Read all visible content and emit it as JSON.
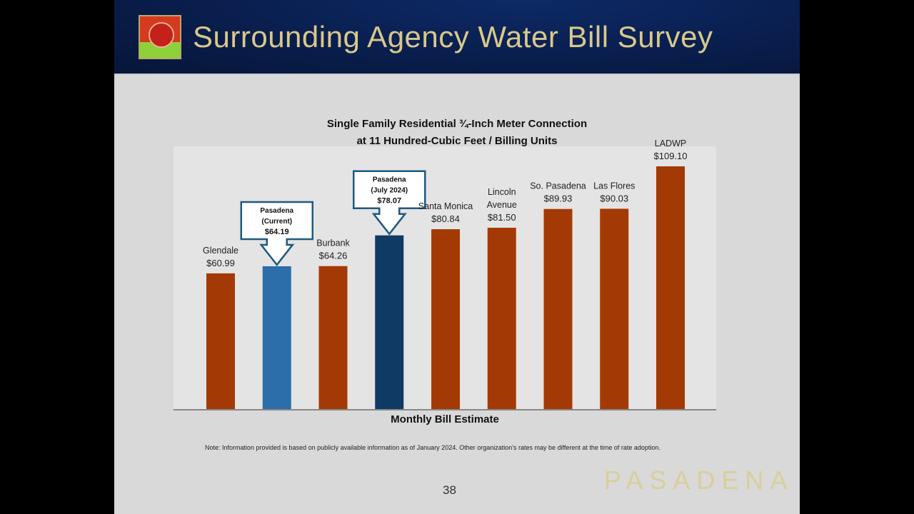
{
  "header": {
    "title": "Surrounding Agency Water Bill Survey",
    "logo": "pasadena-rose-logo"
  },
  "chart_data": {
    "type": "bar",
    "title": "Single Family Residential ¾-Inch Meter Connection",
    "subtitle": "at 11 Hundred-Cubic Feet / Billing Units",
    "xlabel": "Monthly Bill Estimate",
    "ylabel": "",
    "ylim": [
      0,
      118
    ],
    "grid": false,
    "categories": [
      "Glendale",
      "Pasadena (Current)",
      "Burbank",
      "Pasadena (July 2024)",
      "Santa Monica",
      "Lincoln Avenue",
      "So. Pasadena",
      "Las Flores",
      "LADWP"
    ],
    "values": [
      60.99,
      64.19,
      64.26,
      78.07,
      80.84,
      81.5,
      89.93,
      90.03,
      109.1
    ],
    "data_labels": [
      "$60.99",
      "$64.19",
      "$64.26",
      "$78.07",
      "$80.84",
      "$81.50",
      "$89.93",
      "$90.03",
      "$109.10"
    ],
    "label_lines": [
      [
        "Glendale"
      ],
      [
        "Pasadena",
        "(Current)"
      ],
      [
        "Burbank"
      ],
      [
        "Pasadena",
        "(July 2024)"
      ],
      [
        "Santa Monica"
      ],
      [
        "Lincoln",
        "Avenue"
      ],
      [
        "So. Pasadena"
      ],
      [
        "Las Flores"
      ],
      [
        "LADWP"
      ]
    ],
    "callouts": [
      false,
      true,
      false,
      true,
      false,
      false,
      false,
      false,
      false
    ],
    "colors": [
      "#a33a05",
      "#2b6eaa",
      "#a33a05",
      "#0f3a63",
      "#a33a05",
      "#a33a05",
      "#a33a05",
      "#a33a05",
      "#a33a05"
    ]
  },
  "footer": {
    "note": "Note: Information provided is based on publicly available information as of January 2024. Other organization's rates may be different at the time of rate adoption.",
    "page_number": "38",
    "brand": "PASADENA"
  }
}
